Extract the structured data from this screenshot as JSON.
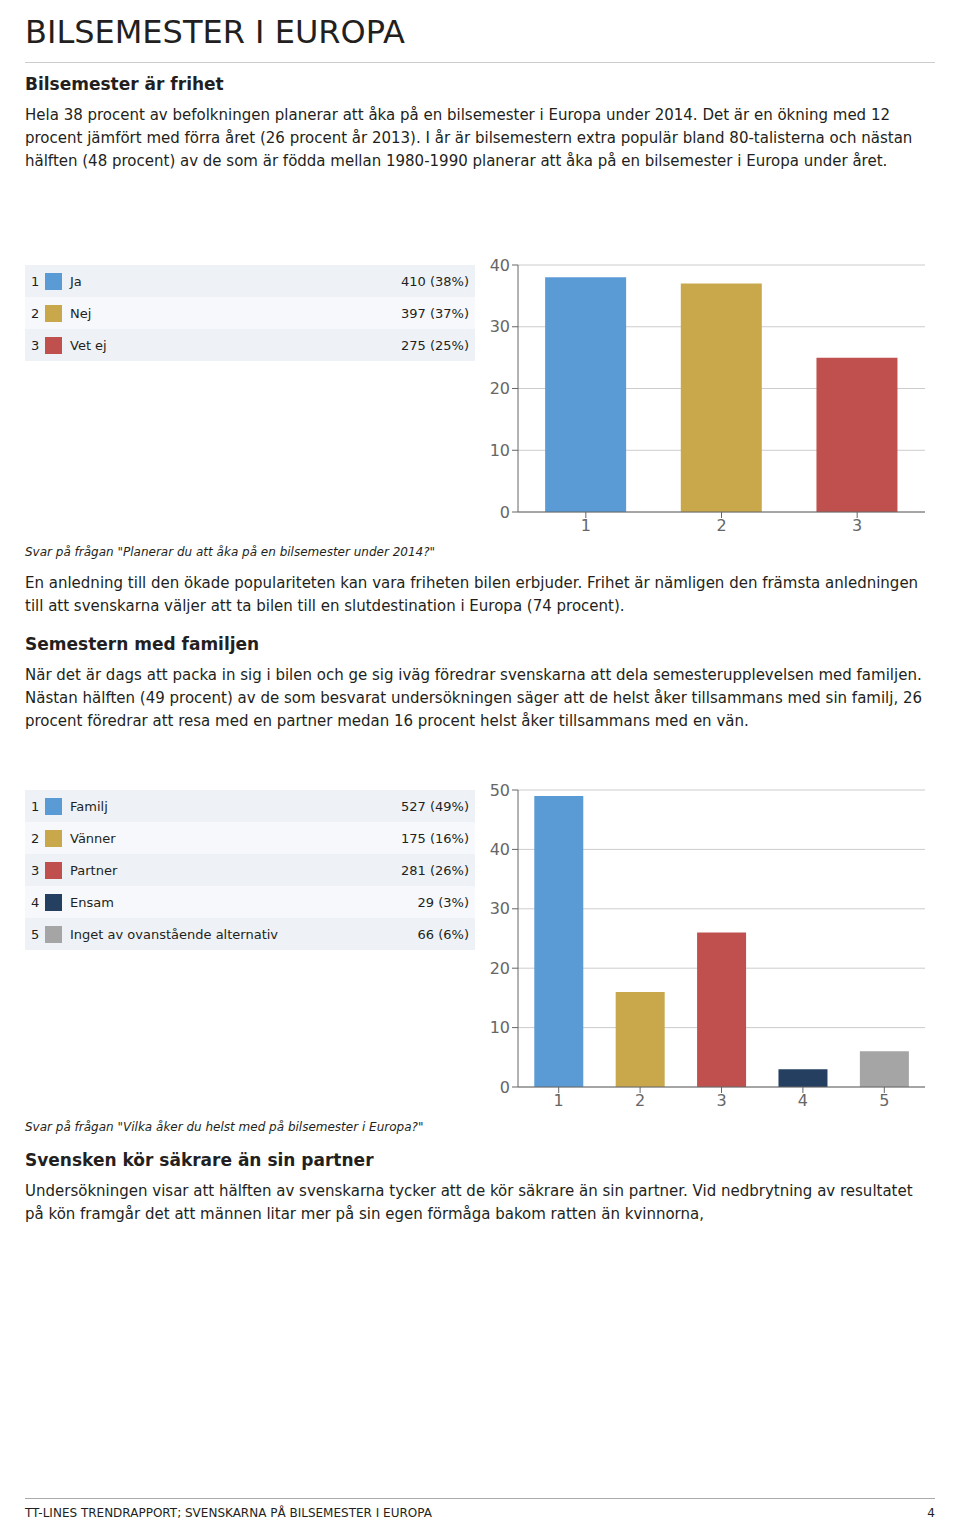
{
  "title": "BILSEMESTER I EUROPA",
  "annotations": [
    "Bilsemester är frihet",
    "Hela 38 procent av befolkningen planerar att åka på en bilsemester i Europa under 2014. Det är en ökning med 12 procent jämfört med förra året (26 procent år 2013). I år är bilsemestern extra populär bland 80-talisterna och nästan hälften (48 procent) av de som är födda mellan 1980-1990 planerar att åka på en bilsemester i Europa under året.",
    "En anledning till den ökade populariteten kan vara friheten bilen erbjuder. Frihet är nämligen den främsta anledningen till att svenskarna väljer att ta bilen till en slutdestination i Europa (74 procent).",
    "Semestern med familjen",
    "När det är dags att packa in sig i bilen och ge sig iväg föredrar svenskarna att dela semesterupplevelsen med familjen. Nästan hälften (49 procent) av de som besvarat undersökningen säger att de helst åker tillsammans med sin familj, 26 procent föredrar att resa med en partner medan 16 procent helst åker tillsammans med en vän.",
    "Svensken kör säkrare än sin partner",
    "Undersökningen visar att hälften av svenskarna tycker att de kör säkrare än sin partner. Vid nedbrytning av resultatet på kön framgår det att männen litar mer på sin egen förmåga bakom ratten än kvinnorna,",
    "TT-LINES TRENDRAPPORT; SVENSKARNA PÅ BILSEMESTER I EUROPA",
    "4"
  ],
  "chart_data": [
    {
      "type": "bar",
      "categories": [
        "1",
        "2",
        "3"
      ],
      "values": [
        38,
        37,
        25
      ],
      "colors": [
        "#5b9bd5",
        "#c9a84c",
        "#c0504d"
      ],
      "ylim": [
        0,
        40
      ],
      "yticks": [
        0,
        10,
        20,
        30,
        40
      ],
      "grid": true,
      "legend_table": [
        {
          "label": "Ja",
          "value": "410 (38%)"
        },
        {
          "label": "Nej",
          "value": "397 (37%)"
        },
        {
          "label": "Vet ej",
          "value": "275 (25%)"
        }
      ],
      "annotations": [
        "Svar på frågan \"Planerar du att åka på en bilsemester under 2014?\""
      ]
    },
    {
      "type": "bar",
      "categories": [
        "1",
        "2",
        "3",
        "4",
        "5"
      ],
      "values": [
        49,
        16,
        26,
        3,
        6
      ],
      "colors": [
        "#5b9bd5",
        "#c9a84c",
        "#c0504d",
        "#243f60",
        "#a5a5a5"
      ],
      "ylim": [
        0,
        50
      ],
      "yticks": [
        0,
        10,
        20,
        30,
        40,
        50
      ],
      "grid": true,
      "legend_table": [
        {
          "label": "Familj",
          "value": "527 (49%)"
        },
        {
          "label": "Vänner",
          "value": "175 (16%)"
        },
        {
          "label": "Partner",
          "value": "281 (26%)"
        },
        {
          "label": "Ensam",
          "value": "29 (3%)"
        },
        {
          "label": "Inget av ovanstående alternativ",
          "value": "66 (6%)"
        }
      ],
      "annotations": [
        "Svar på frågan \"Vilka åker du helst med på bilsemester i Europa?\""
      ]
    }
  ]
}
